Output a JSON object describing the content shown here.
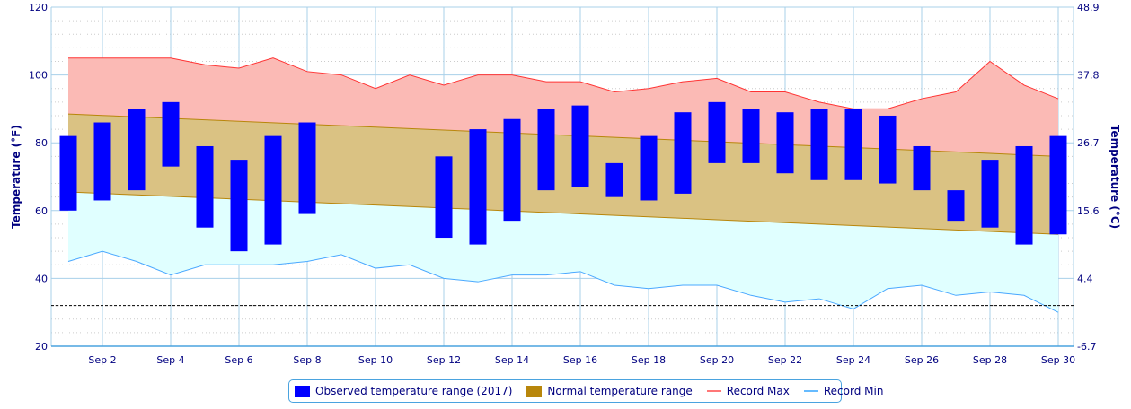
{
  "chart_data": {
    "type": "bar",
    "title": "",
    "ylabel": "Temperature (°F)",
    "ylabel_right": "Temperature (°C)",
    "ylim": [
      20,
      120
    ],
    "yticks": [
      20,
      40,
      60,
      80,
      100,
      120
    ],
    "yticks_right": [
      "-6.7",
      "4.4",
      "15.6",
      "26.7",
      "37.8",
      "48.9"
    ],
    "xtick_labels": [
      "Sep 2",
      "Sep 4",
      "Sep 6",
      "Sep 8",
      "Sep 10",
      "Sep 12",
      "Sep 14",
      "Sep 16",
      "Sep 18",
      "Sep 20",
      "Sep 22",
      "Sep 24",
      "Sep 26",
      "Sep 28",
      "Sep 30"
    ],
    "days": [
      1,
      2,
      3,
      4,
      5,
      6,
      7,
      8,
      9,
      10,
      11,
      12,
      13,
      14,
      15,
      16,
      17,
      18,
      19,
      20,
      21,
      22,
      23,
      24,
      25,
      26,
      27,
      28,
      29,
      30
    ],
    "freezing_line": 32,
    "series": [
      {
        "name": "Observed temperature range (2017)",
        "color": "#0000ff",
        "low": [
          60,
          63,
          66,
          73,
          55,
          48,
          50,
          59,
          null,
          null,
          null,
          52,
          50,
          57,
          66,
          67,
          64,
          63,
          65,
          74,
          74,
          71,
          69,
          69,
          68,
          66,
          57,
          55,
          50,
          53
        ],
        "high": [
          82,
          86,
          90,
          92,
          79,
          75,
          82,
          86,
          null,
          null,
          null,
          76,
          84,
          87,
          90,
          91,
          74,
          82,
          89,
          92,
          90,
          89,
          90,
          90,
          88,
          79,
          66,
          75,
          79,
          82
        ]
      },
      {
        "name": "Normal temperature range",
        "color": "#b8860b",
        "low_start": 65.5,
        "low_end": 53,
        "high_start": 88.5,
        "high_end": 76
      },
      {
        "name": "Record Max",
        "color": "#ff3333",
        "values": [
          105,
          105,
          105,
          105,
          103,
          102,
          105,
          101,
          100,
          96,
          100,
          97,
          100,
          100,
          98,
          98,
          95,
          96,
          98,
          99,
          95,
          95,
          92,
          90,
          90,
          93,
          95,
          104,
          97,
          93
        ]
      },
      {
        "name": "Record Min",
        "color": "#4aa8ff",
        "values": [
          45,
          48,
          45,
          41,
          44,
          44,
          44,
          45,
          47,
          43,
          44,
          40,
          39,
          41,
          41,
          42,
          38,
          37,
          38,
          38,
          35,
          33,
          34,
          31,
          37,
          38,
          35,
          36,
          35,
          30
        ]
      }
    ],
    "legend_position": "bottom"
  }
}
